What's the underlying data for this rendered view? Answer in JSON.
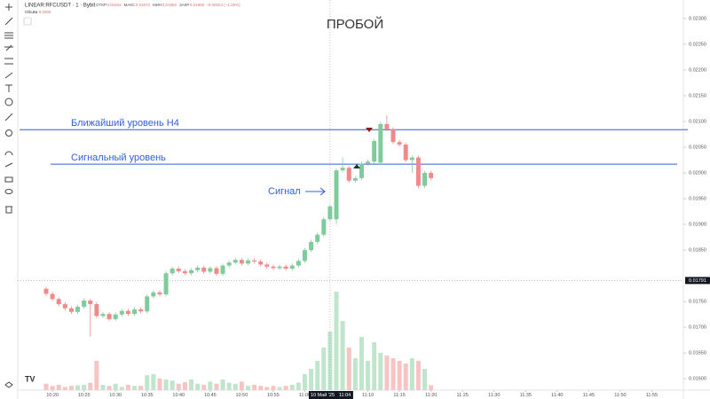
{
  "chart_data": {
    "type": "candlestick",
    "symbol": "LINEAR:RFCUSDT · 1 · Bybit",
    "ohlc_header": {
      "open_label": "ОТКР",
      "open": "0.01934",
      "high_label": "МАКС",
      "high": "0.01972",
      "low_label": "МИН",
      "low": "0.01892",
      "close_label": "ЗАКР",
      "close": "0.01900",
      "change": "−0.00024 (−1.25%)"
    },
    "volume_label": "Объём",
    "volume_last_label": "9.255K",
    "title": "ПРОБОЙ",
    "annotations": [
      {
        "label": "Ближайший уровень H4",
        "value": 0.02084
      },
      {
        "label": "Сигнальный уровень",
        "value": 0.02017
      }
    ],
    "signal_label": "Сигнал",
    "x": [
      619,
      620,
      621,
      622,
      623,
      624,
      625,
      626,
      627,
      628,
      629,
      630,
      631,
      632,
      633,
      634,
      635,
      636,
      637,
      638,
      639,
      640,
      641,
      642,
      643,
      644,
      645,
      646,
      647,
      648,
      649,
      650,
      651,
      652,
      653,
      654,
      655,
      656,
      657,
      658,
      659,
      660,
      661,
      662,
      663,
      664,
      665,
      666,
      667,
      668,
      669,
      670,
      671,
      672,
      673,
      674,
      675,
      676,
      677,
      678,
      679,
      680
    ],
    "open": [
      0.01775,
      0.01765,
      0.01755,
      0.01745,
      0.01737,
      0.0173,
      0.0174,
      0.01752,
      0.01745,
      0.01722,
      0.01726,
      0.01716,
      0.01725,
      0.01732,
      0.01726,
      0.01735,
      0.01731,
      0.0176,
      0.01768,
      0.01764,
      0.01805,
      0.01814,
      0.01809,
      0.01805,
      0.01811,
      0.01816,
      0.01808,
      0.01815,
      0.01804,
      0.0182,
      0.01826,
      0.01831,
      0.01824,
      0.0183,
      0.01828,
      0.01822,
      0.01818,
      0.01815,
      0.01818,
      0.01814,
      0.0182,
      0.01829,
      0.0185,
      0.01866,
      0.0188,
      0.0191,
      0.0191,
      0.02005,
      0.0201,
      0.01985,
      0.0199,
      0.02018,
      0.02022,
      0.0202,
      0.02095,
      0.02085,
      0.0206,
      0.02055,
      0.02025,
      0.0203,
      0.01975,
      0.02
    ],
    "high": [
      0.01779,
      0.01769,
      0.01759,
      0.01749,
      0.01741,
      0.01744,
      0.01756,
      0.01756,
      0.01749,
      0.0173,
      0.0173,
      0.01729,
      0.01736,
      0.01736,
      0.01739,
      0.01739,
      0.01764,
      0.01772,
      0.01772,
      0.01809,
      0.01818,
      0.01818,
      0.01813,
      0.01815,
      0.0182,
      0.0182,
      0.01819,
      0.01819,
      0.01824,
      0.0183,
      0.01835,
      0.01835,
      0.01834,
      0.01834,
      0.01832,
      0.01826,
      0.01822,
      0.01822,
      0.01822,
      0.01824,
      0.01833,
      0.01854,
      0.0187,
      0.01884,
      0.01914,
      0.01939,
      0.02009,
      0.0203,
      0.02014,
      0.01994,
      0.02022,
      0.02026,
      0.02066,
      0.02099,
      0.02112,
      0.02089,
      0.02064,
      0.02059,
      0.02034,
      0.02034,
      0.02004,
      0.02004
    ],
    "low": [
      0.01761,
      0.01751,
      0.01741,
      0.01733,
      0.01726,
      0.01726,
      0.01736,
      0.01682,
      0.01718,
      0.01718,
      0.01712,
      0.01712,
      0.01721,
      0.01722,
      0.01722,
      0.01727,
      0.01727,
      0.01756,
      0.0176,
      0.0176,
      0.01801,
      0.01805,
      0.01801,
      0.01801,
      0.01807,
      0.01804,
      0.01804,
      0.018,
      0.018,
      0.01816,
      0.01822,
      0.0182,
      0.0182,
      0.01824,
      0.01818,
      0.01814,
      0.01811,
      0.01811,
      0.0181,
      0.0181,
      0.01816,
      0.01825,
      0.01846,
      0.01862,
      0.01876,
      0.01906,
      0.019,
      0.02001,
      0.01981,
      0.01981,
      0.01986,
      0.02014,
      0.02018,
      0.02016,
      0.02081,
      0.02056,
      0.02051,
      0.02021,
      0.02,
      0.0197,
      0.01971,
      0.01986
    ],
    "close": [
      0.01765,
      0.01755,
      0.01745,
      0.01737,
      0.0173,
      0.0174,
      0.01752,
      0.01745,
      0.01722,
      0.01726,
      0.01716,
      0.01725,
      0.01732,
      0.01726,
      0.01735,
      0.01731,
      0.0176,
      0.01768,
      0.01764,
      0.01805,
      0.01814,
      0.01809,
      0.01805,
      0.01811,
      0.01816,
      0.01808,
      0.01815,
      0.01804,
      0.0182,
      0.01826,
      0.01831,
      0.01824,
      0.0183,
      0.01828,
      0.01822,
      0.01818,
      0.01815,
      0.01818,
      0.01814,
      0.0182,
      0.01829,
      0.0185,
      0.01866,
      0.0188,
      0.0191,
      0.01935,
      0.02005,
      0.0201,
      0.01985,
      0.0199,
      0.02018,
      0.02022,
      0.02062,
      0.02095,
      0.02085,
      0.0206,
      0.02055,
      0.02025,
      0.0203,
      0.01975,
      0.02,
      0.0199
    ],
    "volume": [
      12,
      8,
      10,
      6,
      8,
      9,
      10,
      14,
      55,
      10,
      8,
      12,
      6,
      10,
      8,
      8,
      28,
      30,
      22,
      20,
      18,
      12,
      15,
      20,
      12,
      10,
      16,
      12,
      20,
      14,
      12,
      16,
      8,
      10,
      8,
      6,
      8,
      6,
      8,
      10,
      14,
      30,
      40,
      55,
      80,
      110,
      185,
      130,
      80,
      60,
      100,
      55,
      90,
      70,
      65,
      60,
      55,
      50,
      60,
      55,
      40,
      9.255
    ],
    "vlim": [
      0,
      200
    ],
    "up_color": "#7fcb9b",
    "down_color": "#f08a8a",
    "up_volume_color": "#bfe5cc",
    "down_volume_color": "#f7c3c3",
    "level_color": "#2f5fd6",
    "xlim": [
      614.5,
      720
    ],
    "ylim": [
      0.01578,
      0.02336
    ],
    "xticks": [
      {
        "value": 620,
        "label": "10:20"
      },
      {
        "value": 625,
        "label": "10:25"
      },
      {
        "value": 630,
        "label": "10:30"
      },
      {
        "value": 635,
        "label": "10:35"
      },
      {
        "value": 640,
        "label": "10:40"
      },
      {
        "value": 645,
        "label": "10:45"
      },
      {
        "value": 650,
        "label": "10:50"
      },
      {
        "value": 655,
        "label": "10:55"
      },
      {
        "value": 660,
        "label": "11:00"
      },
      {
        "value": 670,
        "label": "11:10"
      },
      {
        "value": 675,
        "label": "11:15"
      },
      {
        "value": 680,
        "label": "11:20"
      },
      {
        "value": 685,
        "label": "11:25"
      },
      {
        "value": 690,
        "label": "11:30"
      },
      {
        "value": 695,
        "label": "11:35"
      },
      {
        "value": 700,
        "label": "11:40"
      },
      {
        "value": 705,
        "label": "11:45"
      },
      {
        "value": 710,
        "label": "11:50"
      },
      {
        "value": 715,
        "label": "11:55"
      }
    ],
    "yticks": [
      {
        "value": 0.023,
        "label": "0.02300"
      },
      {
        "value": 0.0225,
        "label": "0.02250"
      },
      {
        "value": 0.022,
        "label": "0.02200"
      },
      {
        "value": 0.0215,
        "label": "0.02150"
      },
      {
        "value": 0.021,
        "label": "0.02100"
      },
      {
        "value": 0.0205,
        "label": "0.02050"
      },
      {
        "value": 0.02,
        "label": "0.02000"
      },
      {
        "value": 0.0195,
        "label": "0.01950"
      },
      {
        "value": 0.019,
        "label": "0.01900"
      },
      {
        "value": 0.0185,
        "label": "0.01850"
      },
      {
        "value": 0.0175,
        "label": "0.01750"
      },
      {
        "value": 0.017,
        "label": "0.01700"
      },
      {
        "value": 0.0165,
        "label": "0.01650"
      },
      {
        "value": 0.016,
        "label": "0.01600"
      }
    ],
    "crosshair": {
      "x": 664,
      "x_label": "10 Май '25",
      "x_time_label": "11:04",
      "y": {
        "value": 0.01791,
        "label": "0.01791"
      }
    }
  }
}
